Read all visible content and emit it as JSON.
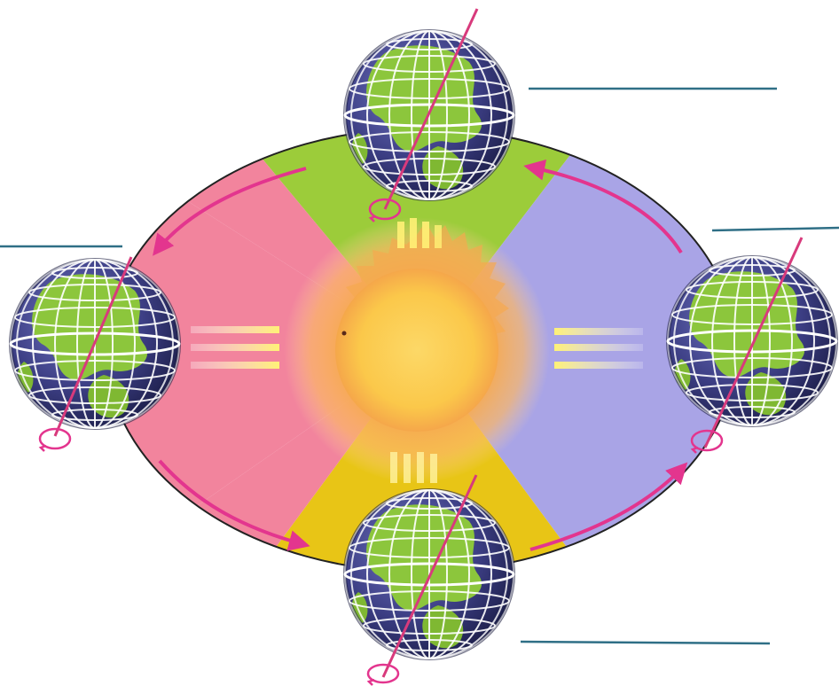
{
  "diagram": {
    "title": "",
    "answer_blanks": [
      {
        "id": "blank-top-right",
        "text": ""
      },
      {
        "id": "blank-left",
        "text": ""
      },
      {
        "id": "blank-right",
        "text": ""
      },
      {
        "id": "blank-bottom-right",
        "text": ""
      }
    ],
    "colors": {
      "quadrant_left": "#f2849d",
      "quadrant_top": "#9ccc3a",
      "quadrant_right": "#a9a4e6",
      "quadrant_bottom": "#e8c516",
      "sun": "#fbc84a",
      "sun_corona": "#f6a94f",
      "arrows": "#e3358e",
      "axis": "#d83a7c",
      "blank_lines": "#2f6f86",
      "globe_ocean": "#3b3d82",
      "globe_land": "#8cc63c"
    },
    "icons": [
      "globe-icon",
      "sun-icon",
      "orbit-arrow-icon",
      "rotation-arrow-icon"
    ]
  }
}
